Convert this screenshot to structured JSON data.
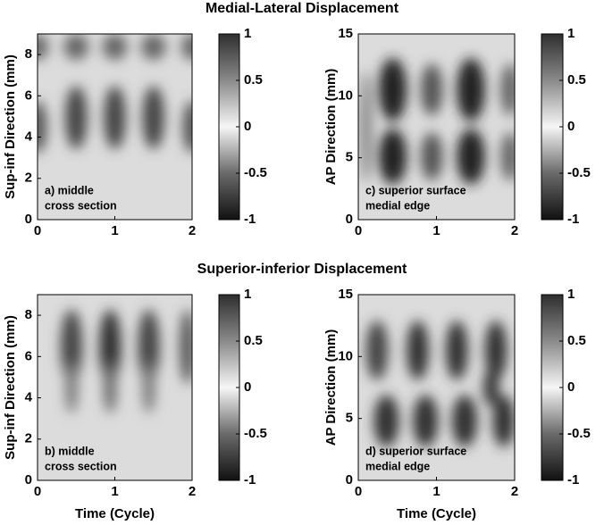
{
  "chart_data": [
    {
      "type": "heatmap",
      "title": "Medial-Lateral Displacement",
      "annotation": [
        "a) middle",
        "cross section"
      ],
      "ylabel": "Sup-inf Direction (mm)",
      "xlim": [
        0,
        2
      ],
      "xticks": [
        0,
        1,
        2
      ],
      "ylim": [
        0,
        9
      ],
      "yticks": [
        0,
        2,
        4,
        6,
        8
      ],
      "colorbar": {
        "lim": [
          -1,
          1
        ],
        "ticks": [
          -1,
          -0.5,
          0,
          0.5,
          1
        ]
      }
    },
    {
      "type": "heatmap",
      "annotation": [
        "c) superior surface",
        "medial edge"
      ],
      "ylabel": "AP Direction (mm)",
      "xlim": [
        0,
        2
      ],
      "xticks": [
        0,
        1,
        2
      ],
      "ylim": [
        0,
        15
      ],
      "yticks": [
        0,
        5,
        10,
        15
      ],
      "colorbar": {
        "lim": [
          -1,
          1
        ],
        "ticks": [
          -1,
          -0.5,
          0,
          0.5,
          1
        ]
      }
    },
    {
      "type": "heatmap",
      "title": "Superior-inferior Displacement",
      "annotation": [
        "b) middle",
        "cross section"
      ],
      "xlabel": "Time (Cycle)",
      "ylabel": "Sup-inf Direction (mm)",
      "xlim": [
        0,
        2
      ],
      "xticks": [
        0,
        1,
        2
      ],
      "ylim": [
        0,
        9
      ],
      "yticks": [
        0,
        2,
        4,
        6,
        8
      ],
      "colorbar": {
        "lim": [
          -1,
          1
        ],
        "ticks": [
          -1,
          -0.5,
          0,
          0.5,
          1
        ]
      }
    },
    {
      "type": "heatmap",
      "annotation": [
        "d) superior surface",
        "medial edge"
      ],
      "xlabel": "Time (Cycle)",
      "ylabel": "AP Direction (mm)",
      "xlim": [
        0,
        2
      ],
      "xticks": [
        0,
        1,
        2
      ],
      "ylim": [
        0,
        15
      ],
      "yticks": [
        0,
        5,
        10,
        15
      ],
      "colorbar": {
        "lim": [
          -1,
          1
        ],
        "ticks": [
          -1,
          -0.5,
          0,
          0.5,
          1
        ]
      }
    }
  ]
}
